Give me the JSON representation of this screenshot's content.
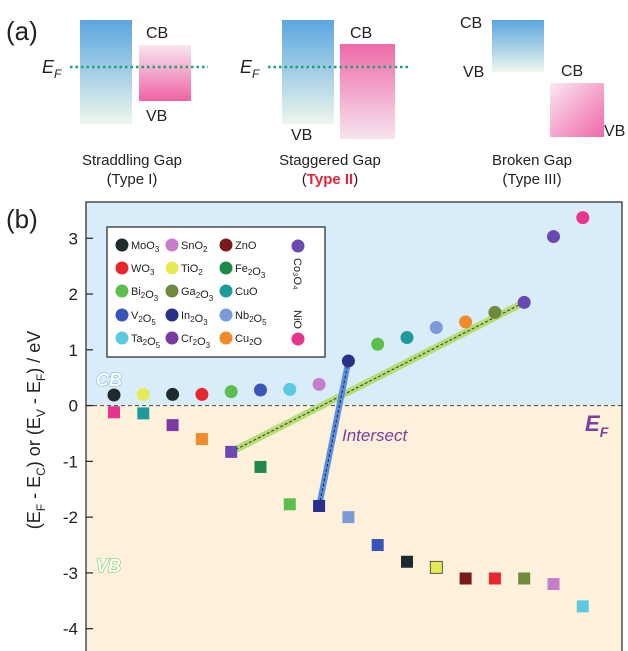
{
  "panel_a": {
    "label": "(a)",
    "ef_label": "E",
    "ef_sub": "F",
    "type1": {
      "cb": "CB",
      "vb": "VB",
      "caption1": "Straddling Gap",
      "caption2": "(Type I)"
    },
    "type2": {
      "cb": "CB",
      "vb": "VB",
      "caption1": "Staggered Gap",
      "caption2_open": "(",
      "caption2_bold": "Type II",
      "caption2_close": ")"
    },
    "type3": {
      "cb1": "CB",
      "vb1": "VB",
      "cb2": "CB",
      "vb2": "VB",
      "caption1": "Broken Gap",
      "caption2": "(Type III)"
    },
    "colors": {
      "cb_blue": "#6aaee0",
      "vb_pink": "#f07ab0",
      "ef_line": "#1aa36b",
      "type2_red": "#e3263f"
    }
  },
  "panel_b": {
    "label": "(b)",
    "cb_region_label": "CB",
    "vb_region_label": "VB",
    "ef_label": "E",
    "ef_sub": "F",
    "intersect_label": "Intersect",
    "colors": {
      "cb_bg": "#d9ecf9",
      "vb_bg": "#fdf1dc",
      "label_purple": "#7a3fa0",
      "trend_green": "#9fcf5a",
      "trend_blue": "#4a7fd0"
    },
    "legend": [
      {
        "name": "MoO",
        "sub": "3",
        "color": "#1f2a2e"
      },
      {
        "name": "SnO",
        "sub": "2",
        "color": "#c77dc9"
      },
      {
        "name": "ZnO",
        "sub": "",
        "color": "#7a1a1a"
      },
      {
        "name": "WO",
        "sub": "3",
        "color": "#e8262d"
      },
      {
        "name": "TiO",
        "sub": "2",
        "color": "#e6ea55"
      },
      {
        "name": "Fe",
        "sub": "2",
        "name2": "O",
        "sub2": "3",
        "color": "#1e8a4a"
      },
      {
        "name": "Bi",
        "sub": "2",
        "name2": "O",
        "sub2": "3",
        "color": "#5cbf4c"
      },
      {
        "name": "Ga",
        "sub": "2",
        "name2": "O",
        "sub2": "3",
        "color": "#6e8a3a"
      },
      {
        "name": "CuO",
        "sub": "",
        "color": "#1f9a9a"
      },
      {
        "name": "V",
        "sub": "2",
        "name2": "O",
        "sub2": "5",
        "color": "#3a55b8"
      },
      {
        "name": "In",
        "sub": "2",
        "name2": "O",
        "sub2": "3",
        "color": "#27308a"
      },
      {
        "name": "Nb",
        "sub": "2",
        "name2": "O",
        "sub2": "5",
        "color": "#7a9ad8"
      },
      {
        "name": "Ta",
        "sub": "2",
        "name2": "O",
        "sub2": "5",
        "color": "#5bc9e0"
      },
      {
        "name": "Cr",
        "sub": "2",
        "name2": "O",
        "sub2": "3",
        "color": "#7b3aa0"
      },
      {
        "name": "Cu",
        "sub": "2",
        "name2": "O",
        "sub2": "",
        "color": "#f08a2a"
      }
    ],
    "legend_vertical": [
      {
        "label": "Co₃O₄",
        "color": "#6a4ab0"
      },
      {
        "label": "NiO",
        "color": "#e8348c"
      }
    ]
  },
  "chart_data": {
    "type": "scatter",
    "ylabel": "(E<sub>F</sub> - E<sub>C</sub>) or (E<sub>V</sub> - E<sub>F</sub>) / eV",
    "ylabel_parts": [
      "(E",
      "F",
      " - E",
      "C",
      ") or (E",
      "V",
      " - E",
      "F",
      ") / eV"
    ],
    "ylim": [
      -4.4,
      3.65
    ],
    "yticks": [
      3,
      2,
      1,
      0,
      -1,
      -2,
      -3,
      -4
    ],
    "grid": false,
    "legend_position": "top-left",
    "series": [
      {
        "name": "CB",
        "marker": "circle",
        "points": [
          {
            "material": "MoO3",
            "x": 1,
            "y": 0.19,
            "color": "#1f2a2e"
          },
          {
            "material": "TiO2",
            "x": 2,
            "y": 0.2,
            "color": "#e6ea55"
          },
          {
            "material": "MoO3",
            "x": 3,
            "y": 0.2,
            "color": "#1f2a2e"
          },
          {
            "material": "WO3",
            "x": 4,
            "y": 0.2,
            "color": "#e8262d"
          },
          {
            "material": "Bi2O3",
            "x": 5,
            "y": 0.25,
            "color": "#5cbf4c"
          },
          {
            "material": "V2O5",
            "x": 6,
            "y": 0.28,
            "color": "#3a55b8"
          },
          {
            "material": "Ta2O5",
            "x": 7,
            "y": 0.29,
            "color": "#5bc9e0"
          },
          {
            "material": "SnO2",
            "x": 8,
            "y": 0.38,
            "color": "#c77dc9"
          },
          {
            "material": "In2O3",
            "x": 9,
            "y": 0.8,
            "color": "#27308a"
          },
          {
            "material": "Bi2O3",
            "x": 10,
            "y": 1.1,
            "color": "#5cbf4c"
          },
          {
            "material": "CuO",
            "x": 11,
            "y": 1.22,
            "color": "#1f9a9a"
          },
          {
            "material": "Nb2O5",
            "x": 12,
            "y": 1.4,
            "color": "#7a9ad8"
          },
          {
            "material": "Cu2O",
            "x": 13,
            "y": 1.5,
            "color": "#f08a2a"
          },
          {
            "material": "Ga2O3",
            "x": 14,
            "y": 1.67,
            "color": "#6e8a3a"
          },
          {
            "material": "Co3O4",
            "x": 15,
            "y": 1.85,
            "color": "#6a4ab0"
          },
          {
            "material": "Co3O4",
            "x": 16,
            "y": 3.03,
            "color": "#6a4ab0"
          },
          {
            "material": "NiO",
            "x": 17,
            "y": 3.37,
            "color": "#e8348c"
          }
        ]
      },
      {
        "name": "VB",
        "marker": "square",
        "points": [
          {
            "material": "NiO",
            "x": 1,
            "y": -0.12,
            "color": "#e8348c"
          },
          {
            "material": "CuO",
            "x": 2,
            "y": -0.14,
            "color": "#1f9a9a"
          },
          {
            "material": "Cr2O3",
            "x": 3,
            "y": -0.35,
            "color": "#7b3aa0"
          },
          {
            "material": "Cu2O",
            "x": 4,
            "y": -0.6,
            "color": "#f08a2a"
          },
          {
            "material": "Co3O4",
            "x": 5,
            "y": -0.83,
            "color": "#6a4ab0"
          },
          {
            "material": "Fe2O3",
            "x": 6,
            "y": -1.1,
            "color": "#1e8a4a"
          },
          {
            "material": "Bi2O3",
            "x": 7,
            "y": -1.77,
            "color": "#5cbf4c"
          },
          {
            "material": "In2O3",
            "x": 8,
            "y": -1.8,
            "color": "#27308a"
          },
          {
            "material": "Nb2O5",
            "x": 9,
            "y": -2.0,
            "color": "#7a9ad8"
          },
          {
            "material": "V2O5",
            "x": 10,
            "y": -2.5,
            "color": "#3a55b8"
          },
          {
            "material": "MoO3",
            "x": 11,
            "y": -2.8,
            "color": "#1f2a2e"
          },
          {
            "material": "TiO2",
            "x": 12,
            "y": -2.9,
            "color": "#e6ea55"
          },
          {
            "material": "ZnO",
            "x": 13,
            "y": -3.1,
            "color": "#7a1a1a"
          },
          {
            "material": "WO3",
            "x": 14,
            "y": -3.1,
            "color": "#e8262d"
          },
          {
            "material": "Ga2O3",
            "x": 15,
            "y": -3.1,
            "color": "#6e8a3a"
          },
          {
            "material": "SnO2",
            "x": 16,
            "y": -3.2,
            "color": "#c77dc9"
          },
          {
            "material": "Ta2O5",
            "x": 17,
            "y": -3.6,
            "color": "#5bc9e0"
          }
        ]
      }
    ],
    "trend_lines": [
      {
        "name": "green-trend",
        "from": {
          "x": 5,
          "y": -0.83
        },
        "to": {
          "x": 15,
          "y": 1.85
        }
      },
      {
        "name": "blue-trend",
        "from": {
          "x": 8,
          "y": -1.8
        },
        "to": {
          "x": 9,
          "y": 0.8
        }
      }
    ]
  }
}
